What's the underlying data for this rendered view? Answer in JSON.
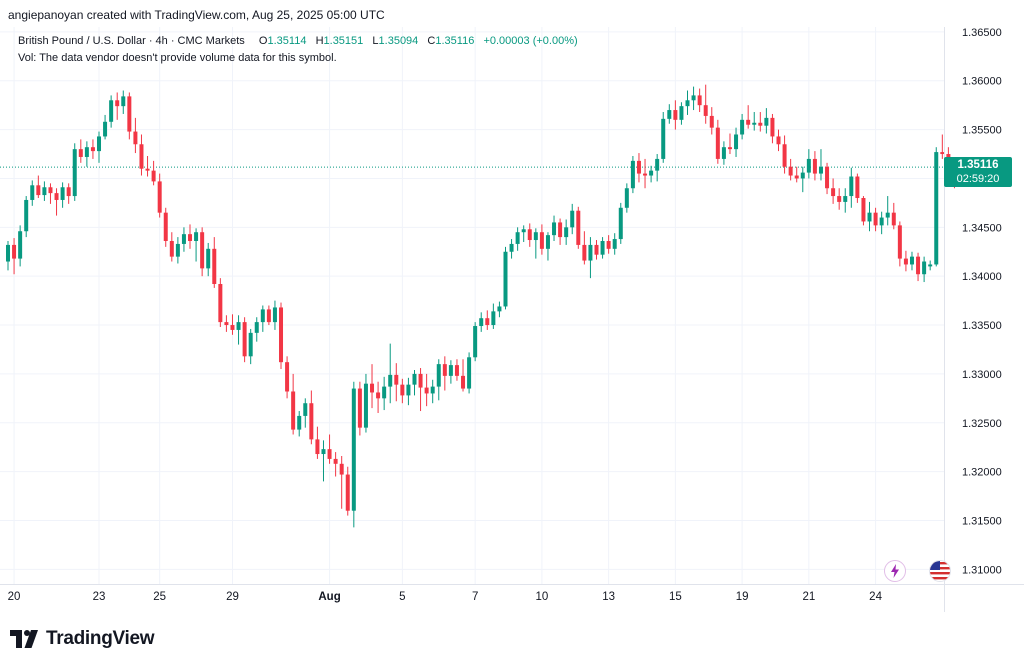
{
  "header": {
    "created_by": "angiepanoyan created with TradingView.com, Aug 25, 2025 05:00 UTC"
  },
  "legend": {
    "symbol": "British Pound / U.S. Dollar · 4h · CMC Markets",
    "o_label": "O",
    "o_value": "1.35114",
    "h_label": "H",
    "h_value": "1.35151",
    "l_label": "L",
    "l_value": "1.35094",
    "c_label": "C",
    "c_value": "1.35116",
    "change": "+0.00003 (+0.00%)",
    "vol_note": "Vol: The data vendor doesn't provide volume data for this symbol."
  },
  "price_tag": {
    "price": "1.35116",
    "countdown": "02:59:20"
  },
  "icons": [
    "lightning-icon",
    "us-flag-icon"
  ],
  "footer": {
    "logo_text": "TradingView"
  },
  "colors": {
    "up": "#089981",
    "down": "#f23645",
    "grid": "#f0f3fa",
    "text": "#131722",
    "current_line": "#089981",
    "lightning": "#9c27b0"
  },
  "chart_data": {
    "type": "candlestick",
    "title": "British Pound / U.S. Dollar · 4h · CMC Markets",
    "ylim": [
      1.3085,
      1.3655
    ],
    "y_ticks": [
      "1.36500",
      "1.36000",
      "1.35500",
      "1.35000",
      "1.34500",
      "1.34000",
      "1.33500",
      "1.33000",
      "1.32500",
      "1.32000",
      "1.31500",
      "1.31000"
    ],
    "y_tick_values": [
      1.365,
      1.36,
      1.355,
      1.35,
      1.345,
      1.34,
      1.335,
      1.33,
      1.325,
      1.32,
      1.315,
      1.31
    ],
    "x_ticks": [
      "20",
      "23",
      "25",
      "29",
      "Aug",
      "5",
      "7",
      "10",
      "13",
      "15",
      "19",
      "21",
      "24"
    ],
    "x_tick_bar_index": [
      1,
      15,
      25,
      37,
      53,
      65,
      77,
      88,
      99,
      110,
      121,
      132,
      143
    ],
    "current_price": 1.35116,
    "grid": true,
    "candles": [
      {
        "o": 1.3415,
        "h": 1.3436,
        "l": 1.3406,
        "c": 1.3432
      },
      {
        "o": 1.3432,
        "h": 1.3439,
        "l": 1.3402,
        "c": 1.3418
      },
      {
        "o": 1.3418,
        "h": 1.3452,
        "l": 1.341,
        "c": 1.3446
      },
      {
        "o": 1.3446,
        "h": 1.3482,
        "l": 1.344,
        "c": 1.3478
      },
      {
        "o": 1.3478,
        "h": 1.3498,
        "l": 1.3472,
        "c": 1.3493
      },
      {
        "o": 1.3493,
        "h": 1.3503,
        "l": 1.348,
        "c": 1.3483
      },
      {
        "o": 1.3483,
        "h": 1.3497,
        "l": 1.3477,
        "c": 1.3491
      },
      {
        "o": 1.3491,
        "h": 1.3495,
        "l": 1.3474,
        "c": 1.3485
      },
      {
        "o": 1.3485,
        "h": 1.349,
        "l": 1.3462,
        "c": 1.3478
      },
      {
        "o": 1.3478,
        "h": 1.3496,
        "l": 1.347,
        "c": 1.3491
      },
      {
        "o": 1.3491,
        "h": 1.3495,
        "l": 1.3474,
        "c": 1.3482
      },
      {
        "o": 1.3482,
        "h": 1.3536,
        "l": 1.3477,
        "c": 1.353
      },
      {
        "o": 1.353,
        "h": 1.354,
        "l": 1.3516,
        "c": 1.3522
      },
      {
        "o": 1.3522,
        "h": 1.3538,
        "l": 1.3512,
        "c": 1.3532
      },
      {
        "o": 1.3532,
        "h": 1.354,
        "l": 1.352,
        "c": 1.3528
      },
      {
        "o": 1.3528,
        "h": 1.3548,
        "l": 1.3516,
        "c": 1.3543
      },
      {
        "o": 1.3543,
        "h": 1.3565,
        "l": 1.354,
        "c": 1.3558
      },
      {
        "o": 1.3558,
        "h": 1.3585,
        "l": 1.3552,
        "c": 1.358
      },
      {
        "o": 1.358,
        "h": 1.3588,
        "l": 1.356,
        "c": 1.3574
      },
      {
        "o": 1.3574,
        "h": 1.359,
        "l": 1.3566,
        "c": 1.3584
      },
      {
        "o": 1.3584,
        "h": 1.3588,
        "l": 1.354,
        "c": 1.3548
      },
      {
        "o": 1.3548,
        "h": 1.3562,
        "l": 1.3526,
        "c": 1.3535
      },
      {
        "o": 1.3535,
        "h": 1.3545,
        "l": 1.3503,
        "c": 1.351
      },
      {
        "o": 1.351,
        "h": 1.3523,
        "l": 1.3502,
        "c": 1.3508
      },
      {
        "o": 1.3508,
        "h": 1.3518,
        "l": 1.3493,
        "c": 1.3497
      },
      {
        "o": 1.3497,
        "h": 1.3505,
        "l": 1.346,
        "c": 1.3465
      },
      {
        "o": 1.3465,
        "h": 1.347,
        "l": 1.343,
        "c": 1.3436
      },
      {
        "o": 1.3436,
        "h": 1.3445,
        "l": 1.3415,
        "c": 1.342
      },
      {
        "o": 1.342,
        "h": 1.344,
        "l": 1.3413,
        "c": 1.3433
      },
      {
        "o": 1.3433,
        "h": 1.345,
        "l": 1.3425,
        "c": 1.3443
      },
      {
        "o": 1.3443,
        "h": 1.3453,
        "l": 1.3428,
        "c": 1.3436
      },
      {
        "o": 1.3436,
        "h": 1.3449,
        "l": 1.3415,
        "c": 1.3445
      },
      {
        "o": 1.3445,
        "h": 1.345,
        "l": 1.34,
        "c": 1.3408
      },
      {
        "o": 1.3408,
        "h": 1.3434,
        "l": 1.34,
        "c": 1.3428
      },
      {
        "o": 1.3428,
        "h": 1.344,
        "l": 1.3388,
        "c": 1.3392
      },
      {
        "o": 1.3392,
        "h": 1.3398,
        "l": 1.3348,
        "c": 1.3353
      },
      {
        "o": 1.3353,
        "h": 1.336,
        "l": 1.3343,
        "c": 1.335
      },
      {
        "o": 1.335,
        "h": 1.3361,
        "l": 1.334,
        "c": 1.3345
      },
      {
        "o": 1.3345,
        "h": 1.336,
        "l": 1.333,
        "c": 1.3353
      },
      {
        "o": 1.3353,
        "h": 1.3358,
        "l": 1.3312,
        "c": 1.3318
      },
      {
        "o": 1.3318,
        "h": 1.3346,
        "l": 1.331,
        "c": 1.3342
      },
      {
        "o": 1.3342,
        "h": 1.3358,
        "l": 1.3333,
        "c": 1.3353
      },
      {
        "o": 1.3353,
        "h": 1.337,
        "l": 1.3343,
        "c": 1.3366
      },
      {
        "o": 1.3366,
        "h": 1.337,
        "l": 1.335,
        "c": 1.3353
      },
      {
        "o": 1.3353,
        "h": 1.3375,
        "l": 1.3345,
        "c": 1.3368
      },
      {
        "o": 1.3368,
        "h": 1.3373,
        "l": 1.3305,
        "c": 1.3312
      },
      {
        "o": 1.3312,
        "h": 1.3318,
        "l": 1.3275,
        "c": 1.3282
      },
      {
        "o": 1.3282,
        "h": 1.33,
        "l": 1.3238,
        "c": 1.3243
      },
      {
        "o": 1.3243,
        "h": 1.3262,
        "l": 1.3236,
        "c": 1.3257
      },
      {
        "o": 1.3257,
        "h": 1.3275,
        "l": 1.3245,
        "c": 1.327
      },
      {
        "o": 1.327,
        "h": 1.3283,
        "l": 1.3228,
        "c": 1.3233
      },
      {
        "o": 1.3233,
        "h": 1.3246,
        "l": 1.3213,
        "c": 1.3218
      },
      {
        "o": 1.3218,
        "h": 1.3232,
        "l": 1.319,
        "c": 1.3223
      },
      {
        "o": 1.3223,
        "h": 1.3238,
        "l": 1.3208,
        "c": 1.3213
      },
      {
        "o": 1.3213,
        "h": 1.322,
        "l": 1.3195,
        "c": 1.3208
      },
      {
        "o": 1.3208,
        "h": 1.3216,
        "l": 1.3162,
        "c": 1.3197
      },
      {
        "o": 1.3197,
        "h": 1.3205,
        "l": 1.3155,
        "c": 1.316
      },
      {
        "o": 1.316,
        "h": 1.3292,
        "l": 1.3143,
        "c": 1.3285
      },
      {
        "o": 1.3285,
        "h": 1.3292,
        "l": 1.3237,
        "c": 1.3245
      },
      {
        "o": 1.3245,
        "h": 1.33,
        "l": 1.324,
        "c": 1.329
      },
      {
        "o": 1.329,
        "h": 1.331,
        "l": 1.3265,
        "c": 1.3281
      },
      {
        "o": 1.3281,
        "h": 1.3292,
        "l": 1.326,
        "c": 1.3275
      },
      {
        "o": 1.3275,
        "h": 1.3297,
        "l": 1.3263,
        "c": 1.3287
      },
      {
        "o": 1.3287,
        "h": 1.3331,
        "l": 1.327,
        "c": 1.3299
      },
      {
        "o": 1.3299,
        "h": 1.3311,
        "l": 1.3272,
        "c": 1.3289
      },
      {
        "o": 1.3289,
        "h": 1.3295,
        "l": 1.327,
        "c": 1.3278
      },
      {
        "o": 1.3278,
        "h": 1.3296,
        "l": 1.3268,
        "c": 1.3289
      },
      {
        "o": 1.3289,
        "h": 1.3304,
        "l": 1.3278,
        "c": 1.33
      },
      {
        "o": 1.33,
        "h": 1.3306,
        "l": 1.3262,
        "c": 1.3286
      },
      {
        "o": 1.3286,
        "h": 1.33,
        "l": 1.3267,
        "c": 1.328
      },
      {
        "o": 1.328,
        "h": 1.3294,
        "l": 1.327,
        "c": 1.3287
      },
      {
        "o": 1.3287,
        "h": 1.3315,
        "l": 1.3273,
        "c": 1.331
      },
      {
        "o": 1.331,
        "h": 1.3318,
        "l": 1.3283,
        "c": 1.3298
      },
      {
        "o": 1.3298,
        "h": 1.3314,
        "l": 1.329,
        "c": 1.3309
      },
      {
        "o": 1.3309,
        "h": 1.3315,
        "l": 1.3293,
        "c": 1.3298
      },
      {
        "o": 1.3298,
        "h": 1.3315,
        "l": 1.3282,
        "c": 1.3285
      },
      {
        "o": 1.3285,
        "h": 1.3322,
        "l": 1.328,
        "c": 1.3317
      },
      {
        "o": 1.3317,
        "h": 1.3353,
        "l": 1.3313,
        "c": 1.3349
      },
      {
        "o": 1.3349,
        "h": 1.3363,
        "l": 1.3343,
        "c": 1.3357
      },
      {
        "o": 1.3357,
        "h": 1.3365,
        "l": 1.3345,
        "c": 1.335
      },
      {
        "o": 1.335,
        "h": 1.3372,
        "l": 1.3346,
        "c": 1.3364
      },
      {
        "o": 1.3364,
        "h": 1.3374,
        "l": 1.3358,
        "c": 1.3369
      },
      {
        "o": 1.3369,
        "h": 1.343,
        "l": 1.3366,
        "c": 1.3425
      },
      {
        "o": 1.3425,
        "h": 1.3438,
        "l": 1.3418,
        "c": 1.3433
      },
      {
        "o": 1.3433,
        "h": 1.345,
        "l": 1.3426,
        "c": 1.3445
      },
      {
        "o": 1.3445,
        "h": 1.3452,
        "l": 1.3435,
        "c": 1.3448
      },
      {
        "o": 1.3448,
        "h": 1.3454,
        "l": 1.343,
        "c": 1.3437
      },
      {
        "o": 1.3437,
        "h": 1.3449,
        "l": 1.3418,
        "c": 1.3445
      },
      {
        "o": 1.3445,
        "h": 1.3453,
        "l": 1.3422,
        "c": 1.3428
      },
      {
        "o": 1.3428,
        "h": 1.3445,
        "l": 1.3416,
        "c": 1.3442
      },
      {
        "o": 1.3442,
        "h": 1.3462,
        "l": 1.3436,
        "c": 1.3455
      },
      {
        "o": 1.3455,
        "h": 1.3459,
        "l": 1.3432,
        "c": 1.344
      },
      {
        "o": 1.344,
        "h": 1.3458,
        "l": 1.3432,
        "c": 1.345
      },
      {
        "o": 1.345,
        "h": 1.3474,
        "l": 1.3443,
        "c": 1.3467
      },
      {
        "o": 1.3467,
        "h": 1.3471,
        "l": 1.3428,
        "c": 1.3432
      },
      {
        "o": 1.3432,
        "h": 1.3446,
        "l": 1.3412,
        "c": 1.3416
      },
      {
        "o": 1.3416,
        "h": 1.344,
        "l": 1.3398,
        "c": 1.3432
      },
      {
        "o": 1.3432,
        "h": 1.3437,
        "l": 1.3417,
        "c": 1.3422
      },
      {
        "o": 1.3422,
        "h": 1.344,
        "l": 1.3418,
        "c": 1.3436
      },
      {
        "o": 1.3436,
        "h": 1.3442,
        "l": 1.3423,
        "c": 1.3428
      },
      {
        "o": 1.3428,
        "h": 1.3444,
        "l": 1.3422,
        "c": 1.3438
      },
      {
        "o": 1.3438,
        "h": 1.3475,
        "l": 1.3433,
        "c": 1.347
      },
      {
        "o": 1.347,
        "h": 1.3495,
        "l": 1.3465,
        "c": 1.349
      },
      {
        "o": 1.349,
        "h": 1.3523,
        "l": 1.3485,
        "c": 1.3518
      },
      {
        "o": 1.3518,
        "h": 1.3526,
        "l": 1.3496,
        "c": 1.3505
      },
      {
        "o": 1.3505,
        "h": 1.352,
        "l": 1.349,
        "c": 1.3503
      },
      {
        "o": 1.3503,
        "h": 1.3513,
        "l": 1.3496,
        "c": 1.3508
      },
      {
        "o": 1.3508,
        "h": 1.3525,
        "l": 1.3497,
        "c": 1.352
      },
      {
        "o": 1.352,
        "h": 1.3568,
        "l": 1.3516,
        "c": 1.3561
      },
      {
        "o": 1.3561,
        "h": 1.3576,
        "l": 1.3556,
        "c": 1.357
      },
      {
        "o": 1.357,
        "h": 1.358,
        "l": 1.355,
        "c": 1.356
      },
      {
        "o": 1.356,
        "h": 1.3578,
        "l": 1.3555,
        "c": 1.3574
      },
      {
        "o": 1.3574,
        "h": 1.359,
        "l": 1.3565,
        "c": 1.358
      },
      {
        "o": 1.358,
        "h": 1.3594,
        "l": 1.357,
        "c": 1.3585
      },
      {
        "o": 1.3585,
        "h": 1.3592,
        "l": 1.3568,
        "c": 1.3575
      },
      {
        "o": 1.3575,
        "h": 1.3596,
        "l": 1.3556,
        "c": 1.3564
      },
      {
        "o": 1.3564,
        "h": 1.3573,
        "l": 1.3545,
        "c": 1.3552
      },
      {
        "o": 1.3552,
        "h": 1.356,
        "l": 1.3515,
        "c": 1.352
      },
      {
        "o": 1.352,
        "h": 1.3538,
        "l": 1.3514,
        "c": 1.3532
      },
      {
        "o": 1.3532,
        "h": 1.3546,
        "l": 1.3525,
        "c": 1.353
      },
      {
        "o": 1.353,
        "h": 1.3552,
        "l": 1.3522,
        "c": 1.3545
      },
      {
        "o": 1.3545,
        "h": 1.3566,
        "l": 1.354,
        "c": 1.356
      },
      {
        "o": 1.356,
        "h": 1.3575,
        "l": 1.3551,
        "c": 1.3555
      },
      {
        "o": 1.3555,
        "h": 1.3568,
        "l": 1.3549,
        "c": 1.3557
      },
      {
        "o": 1.3557,
        "h": 1.3568,
        "l": 1.3548,
        "c": 1.3554
      },
      {
        "o": 1.3554,
        "h": 1.3572,
        "l": 1.3546,
        "c": 1.3562
      },
      {
        "o": 1.3562,
        "h": 1.3566,
        "l": 1.3536,
        "c": 1.3543
      },
      {
        "o": 1.3543,
        "h": 1.355,
        "l": 1.3528,
        "c": 1.3535
      },
      {
        "o": 1.3535,
        "h": 1.3544,
        "l": 1.3505,
        "c": 1.3512
      },
      {
        "o": 1.3512,
        "h": 1.352,
        "l": 1.3498,
        "c": 1.3503
      },
      {
        "o": 1.3503,
        "h": 1.3512,
        "l": 1.3496,
        "c": 1.35
      },
      {
        "o": 1.35,
        "h": 1.3512,
        "l": 1.3486,
        "c": 1.3506
      },
      {
        "o": 1.3506,
        "h": 1.353,
        "l": 1.35,
        "c": 1.352
      },
      {
        "o": 1.352,
        "h": 1.3528,
        "l": 1.3498,
        "c": 1.3505
      },
      {
        "o": 1.3505,
        "h": 1.353,
        "l": 1.3498,
        "c": 1.3512
      },
      {
        "o": 1.3512,
        "h": 1.3516,
        "l": 1.3484,
        "c": 1.349
      },
      {
        "o": 1.349,
        "h": 1.35,
        "l": 1.3474,
        "c": 1.3482
      },
      {
        "o": 1.3482,
        "h": 1.349,
        "l": 1.3468,
        "c": 1.3476
      },
      {
        "o": 1.3476,
        "h": 1.349,
        "l": 1.3465,
        "c": 1.3482
      },
      {
        "o": 1.3482,
        "h": 1.3511,
        "l": 1.347,
        "c": 1.3502
      },
      {
        "o": 1.3502,
        "h": 1.3505,
        "l": 1.3475,
        "c": 1.348
      },
      {
        "o": 1.348,
        "h": 1.3482,
        "l": 1.3452,
        "c": 1.3456
      },
      {
        "o": 1.3456,
        "h": 1.3476,
        "l": 1.3446,
        "c": 1.3465
      },
      {
        "o": 1.3465,
        "h": 1.347,
        "l": 1.3446,
        "c": 1.3452
      },
      {
        "o": 1.3452,
        "h": 1.3466,
        "l": 1.3443,
        "c": 1.346
      },
      {
        "o": 1.346,
        "h": 1.3482,
        "l": 1.3452,
        "c": 1.3465
      },
      {
        "o": 1.3465,
        "h": 1.3475,
        "l": 1.3448,
        "c": 1.3452
      },
      {
        "o": 1.3452,
        "h": 1.3456,
        "l": 1.341,
        "c": 1.3418
      },
      {
        "o": 1.3418,
        "h": 1.3426,
        "l": 1.3405,
        "c": 1.3412
      },
      {
        "o": 1.3412,
        "h": 1.3425,
        "l": 1.3406,
        "c": 1.342
      },
      {
        "o": 1.342,
        "h": 1.3424,
        "l": 1.3395,
        "c": 1.3402
      },
      {
        "o": 1.3402,
        "h": 1.342,
        "l": 1.3394,
        "c": 1.3415
      },
      {
        "o": 1.341,
        "h": 1.3416,
        "l": 1.3406,
        "c": 1.3412
      },
      {
        "o": 1.3412,
        "h": 1.3532,
        "l": 1.341,
        "c": 1.3527
      },
      {
        "o": 1.3527,
        "h": 1.3545,
        "l": 1.352,
        "c": 1.3525
      },
      {
        "o": 1.3525,
        "h": 1.3532,
        "l": 1.3508,
        "c": 1.3512
      },
      {
        "o": 1.3512,
        "h": 1.352,
        "l": 1.349,
        "c": 1.3508
      },
      {
        "o": 1.35114,
        "h": 1.35151,
        "l": 1.35094,
        "c": 1.35116
      }
    ]
  }
}
